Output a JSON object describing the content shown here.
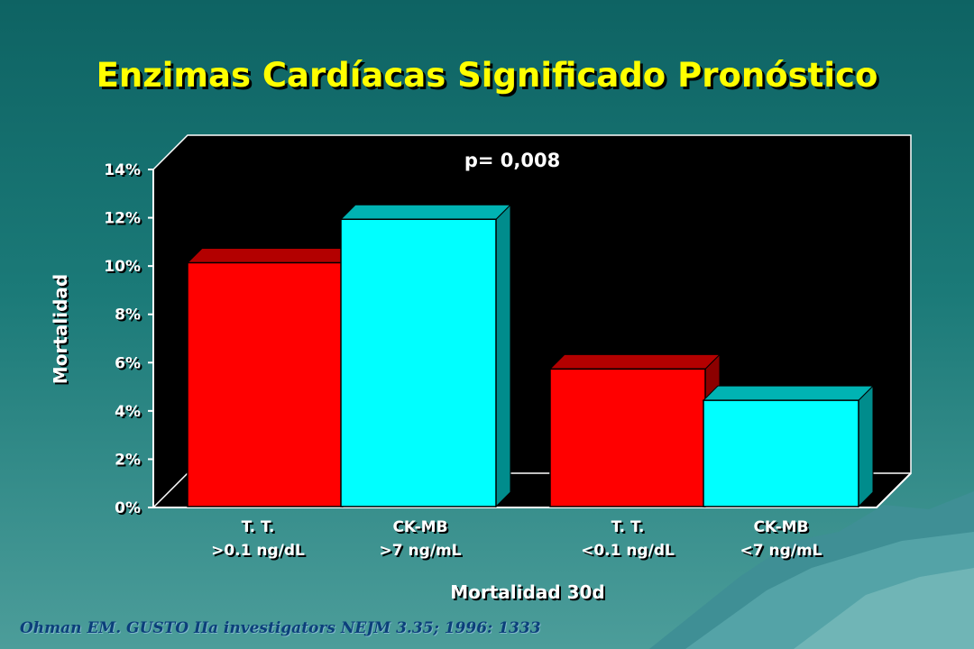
{
  "slide": {
    "title": "Enzimas Cardíacas Significado Pronóstico",
    "citation": "Ohman EM. GUSTO IIa investigators NEJM 3.35; 1996: 1333"
  },
  "colors": {
    "background": "#1b7a78",
    "title": "#ffff00",
    "plot_background": "#000000",
    "series_red": "#ff0000",
    "series_cyan": "#00ffff"
  },
  "chart_data": {
    "type": "bar",
    "three_d": true,
    "title": "",
    "ylabel": "Mortalidad",
    "xlabel": "Mortalidad 30d",
    "ylim": [
      0,
      14
    ],
    "yticks": [
      "0%",
      "2%",
      "4%",
      "6%",
      "8%",
      "10%",
      "12%",
      "14%"
    ],
    "annotation": "p= 0,008",
    "grid": false,
    "legend": "none",
    "bars": [
      {
        "label_line1": "T. T.",
        "label_line2": ">0.1 ng/dL",
        "value": 10.1,
        "color": "#ff0000"
      },
      {
        "label_line1": "CK-MB",
        "label_line2": ">7 ng/mL",
        "value": 11.9,
        "color": "#00ffff"
      },
      {
        "label_line1": "T. T.",
        "label_line2": "<0.1 ng/dL",
        "value": 5.7,
        "color": "#ff0000"
      },
      {
        "label_line1": "CK-MB",
        "label_line2": "<7 ng/mL",
        "value": 4.4,
        "color": "#00ffff"
      }
    ]
  }
}
